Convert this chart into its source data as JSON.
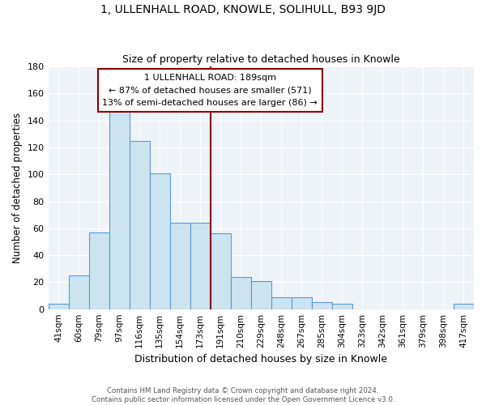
{
  "title": "1, ULLENHALL ROAD, KNOWLE, SOLIHULL, B93 9JD",
  "subtitle": "Size of property relative to detached houses in Knowle",
  "xlabel": "Distribution of detached houses by size in Knowle",
  "ylabel": "Number of detached properties",
  "bar_labels": [
    "41sqm",
    "60sqm",
    "79sqm",
    "97sqm",
    "116sqm",
    "135sqm",
    "154sqm",
    "173sqm",
    "191sqm",
    "210sqm",
    "229sqm",
    "248sqm",
    "267sqm",
    "285sqm",
    "304sqm",
    "323sqm",
    "342sqm",
    "361sqm",
    "379sqm",
    "398sqm",
    "417sqm"
  ],
  "bar_heights": [
    4,
    25,
    57,
    149,
    125,
    101,
    64,
    64,
    56,
    24,
    21,
    9,
    9,
    5,
    4,
    0,
    0,
    0,
    0,
    0,
    4
  ],
  "bar_color": "#cce4f0",
  "bar_edge_color": "#5b9bd5",
  "vline_color": "#8b0000",
  "annotation_title": "1 ULLENHALL ROAD: 189sqm",
  "annotation_line1": "← 87% of detached houses are smaller (571)",
  "annotation_line2": "13% of semi-detached houses are larger (86) →",
  "annotation_box_facecolor": "#ffffff",
  "annotation_box_edgecolor": "#8b0000",
  "plot_bg_color": "#eef3f8",
  "grid_color": "#ffffff",
  "footer_line1": "Contains HM Land Registry data © Crown copyright and database right 2024.",
  "footer_line2": "Contains public sector information licensed under the Open Government Licence v3.0.",
  "ylim": [
    0,
    180
  ],
  "figsize": [
    6.0,
    5.0
  ],
  "dpi": 100
}
